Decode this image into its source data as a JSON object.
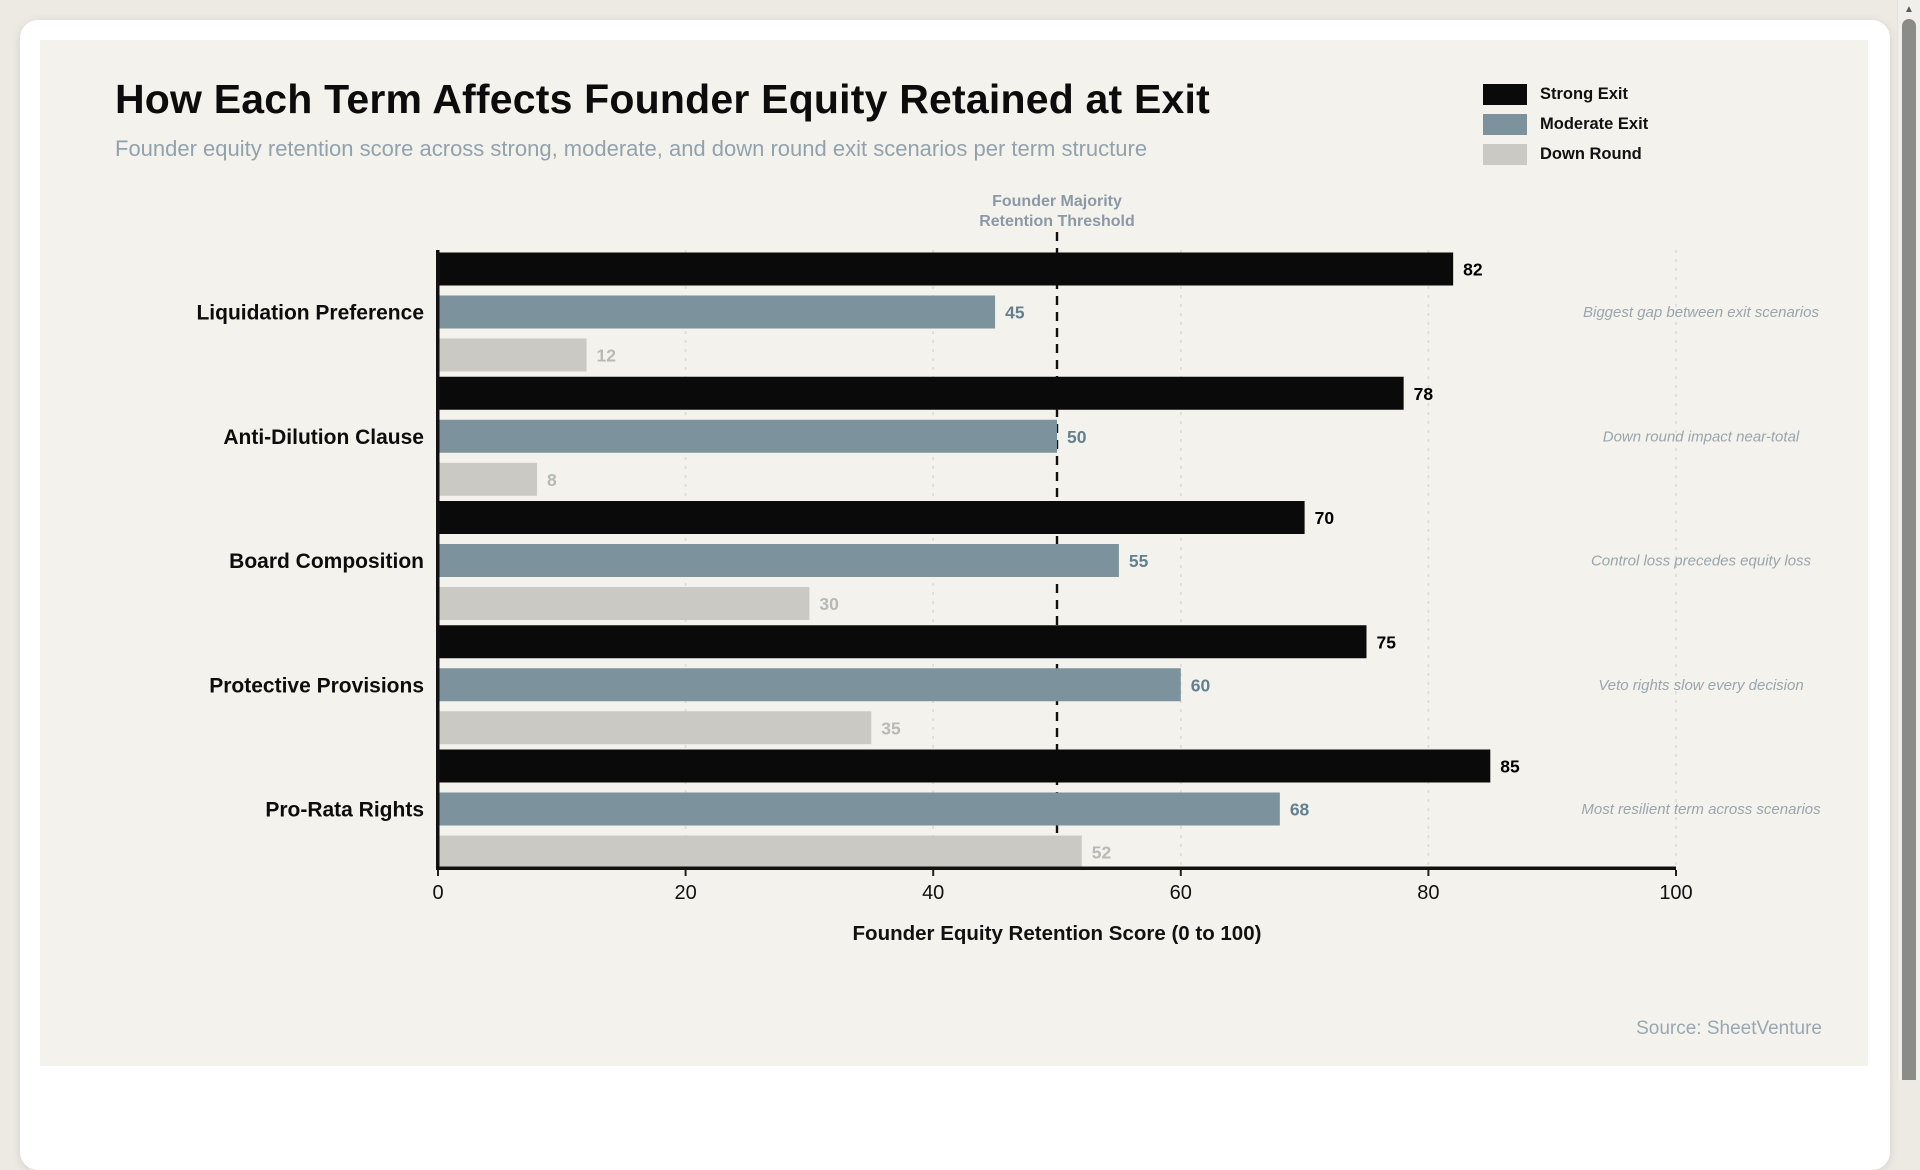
{
  "header": {
    "title": "How Each Term Affects Founder Equity Retained at Exit",
    "subtitle": "Founder equity retention score across strong, moderate, and down round exit scenarios per term structure"
  },
  "legend": {
    "items": [
      {
        "label": "Strong Exit",
        "color": "#0a0a0a",
        "label_color": "#000000"
      },
      {
        "label": "Moderate Exit",
        "color": "#7c929c",
        "label_color": "#64808f"
      },
      {
        "label": "Down Round",
        "color": "#cac9c4",
        "label_color": "#b7bab4"
      }
    ]
  },
  "chart_data": {
    "type": "bar",
    "orientation": "horizontal",
    "title": "How Each Term Affects Founder Equity Retained at Exit",
    "categories": [
      "Liquidation Preference",
      "Anti-Dilution Clause",
      "Board Composition",
      "Protective Provisions",
      "Pro-Rata Rights"
    ],
    "series": [
      {
        "name": "Strong Exit",
        "color": "#0a0a0a",
        "label_color": "#000000",
        "values": [
          82,
          78,
          70,
          75,
          85
        ]
      },
      {
        "name": "Moderate Exit",
        "color": "#7c929c",
        "label_color": "#64808f",
        "values": [
          45,
          50,
          55,
          60,
          68
        ]
      },
      {
        "name": "Down Round",
        "color": "#cac9c4",
        "label_color": "#b7bab4",
        "values": [
          12,
          8,
          30,
          35,
          52
        ]
      }
    ],
    "row_annotations": [
      "Biggest gap between exit scenarios",
      "Down round impact near-total",
      "Control loss precedes equity loss",
      "Veto rights slow every decision",
      "Most resilient term across scenarios"
    ],
    "threshold": {
      "value": 50,
      "label_line1": "Founder Majority",
      "label_line2": "Retention Threshold"
    },
    "xlabel": "Founder Equity Retention Score (0 to 100)",
    "xlim": [
      0,
      100
    ],
    "xticks": [
      0,
      20,
      40,
      60,
      80,
      100
    ],
    "grid": "dashed-vertical",
    "legend_position": "top-right",
    "colors": {
      "axis": "#111111",
      "gridline": "#dcdbd5",
      "tick_label": "#111111",
      "category_label": "#0d0d0d",
      "annotation_text": "#99a5ae",
      "threshold_text": "#8b99a6"
    }
  },
  "footer": {
    "source": "Source: SheetVenture"
  },
  "scrollbar": {
    "up_arrow": "▲"
  }
}
